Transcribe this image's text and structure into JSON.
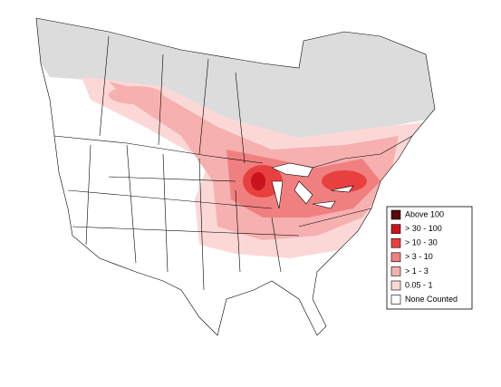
{
  "legend": {
    "items": [
      {
        "label": "Above 100",
        "color": "#5a0a0a"
      },
      {
        "label": "> 30 - 100",
        "color": "#c8141e"
      },
      {
        "label": "> 10 - 30",
        "color": "#e8403f"
      },
      {
        "label": "> 3 - 10",
        "color": "#f08080"
      },
      {
        "label": "> 1 - 3",
        "color": "#f6b0b0"
      },
      {
        "label": "0.05 - 1",
        "color": "#fbd8d6"
      },
      {
        "label": "None Counted",
        "color": "#ffffff"
      }
    ]
  }
}
